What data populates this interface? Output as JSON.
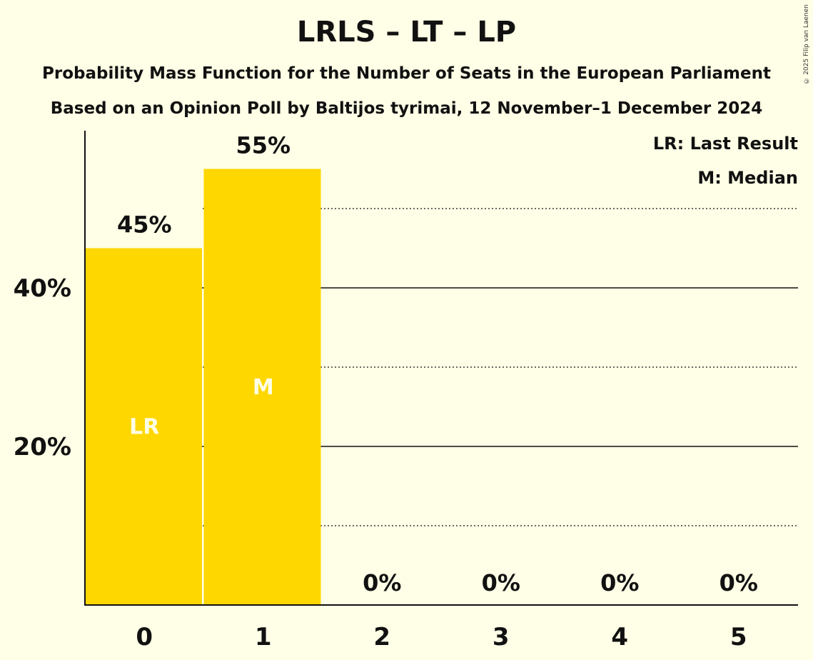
{
  "chart_data": {
    "type": "bar",
    "title": "LRLS – LT – LP",
    "subtitle": "Probability Mass Function for the Number of Seats in the European Parliament",
    "subtitle2": "Based on an Opinion Poll by Baltijos tyrimai, 12 November–1 December 2024",
    "categories": [
      "0",
      "1",
      "2",
      "3",
      "4",
      "5"
    ],
    "values": [
      45,
      55,
      0,
      0,
      0,
      0
    ],
    "value_labels": [
      "45%",
      "55%",
      "0%",
      "0%",
      "0%",
      "0%"
    ],
    "bar_marks": [
      "LR",
      "M",
      "",
      "",
      "",
      ""
    ],
    "ylim": [
      0,
      60
    ],
    "yticks": [
      20,
      40
    ],
    "ytick_labels": [
      "20%",
      "40%"
    ],
    "minor_gridlines": [
      10,
      30,
      50
    ],
    "xlabel": "",
    "ylabel": "",
    "legend": [
      "LR: Last Result",
      "M: Median"
    ],
    "legend_position": "top-right",
    "colors": {
      "bar": "#FFD700",
      "background": "#FFFEE6",
      "axis": "#111111",
      "mark_text": "#FFFEE6"
    }
  },
  "copyright": "© 2025 Filip van Laenen"
}
